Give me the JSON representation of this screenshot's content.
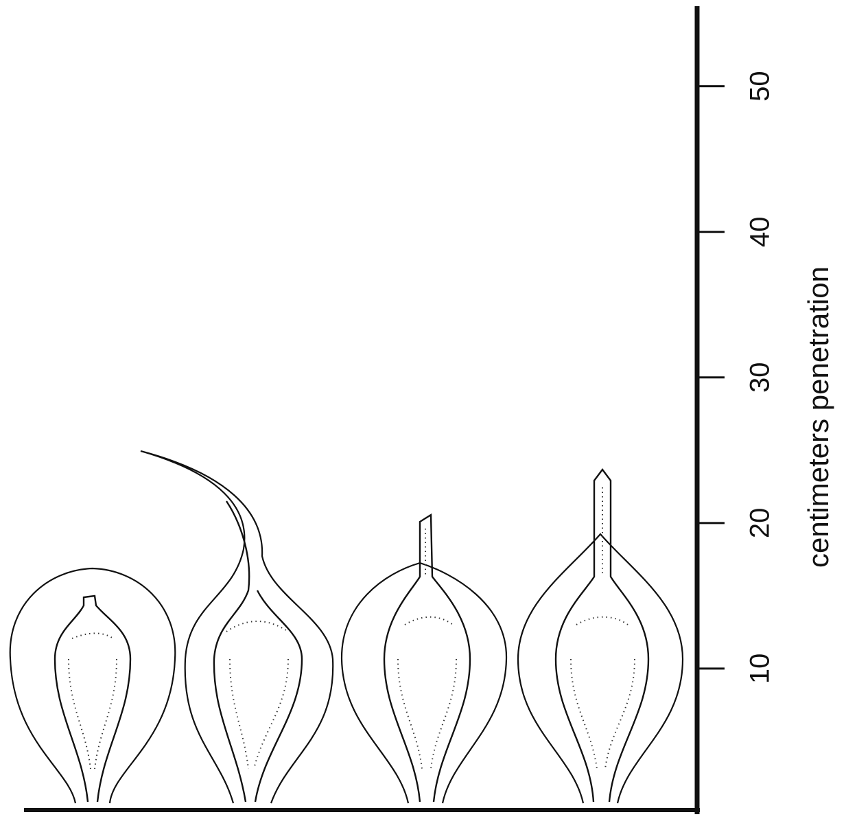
{
  "chart_data": {
    "type": "profile",
    "ylabel": "centimeters penetration",
    "ylim": [
      0,
      55.5
    ],
    "yticks": [
      10,
      20,
      30,
      40,
      50
    ]
  }
}
